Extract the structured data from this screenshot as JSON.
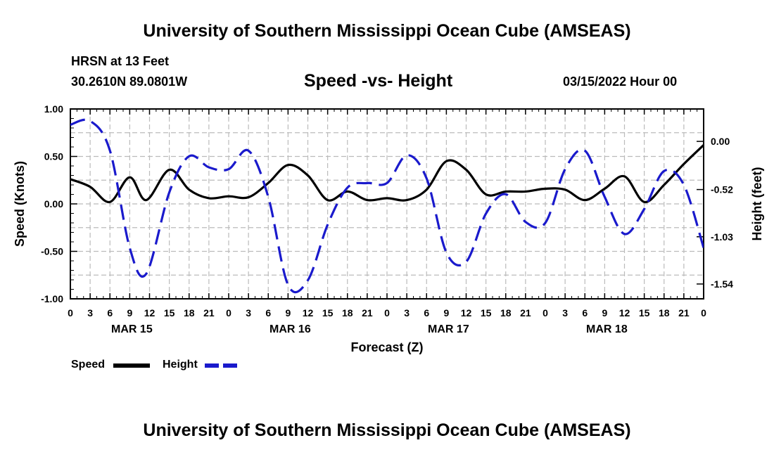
{
  "page": {
    "title_top": "University of Southern Mississippi Ocean Cube (AMSEAS)",
    "title_bottom": "University of Southern Mississippi Ocean Cube (AMSEAS)",
    "station": "HRSN at 13 Feet",
    "coords": "30.2610N  89.0801W",
    "subtitle": "Speed -vs- Height",
    "datetime": "03/15/2022 Hour 00"
  },
  "legend": {
    "speed": "Speed",
    "height": "Height"
  },
  "colors": {
    "speed": "#000000",
    "height": "#1a1acc",
    "grid": "#bbbbbb"
  },
  "chart_data": {
    "type": "line",
    "xlabel": "Forecast (Z)",
    "ylabel_left": "Speed (Knots)",
    "ylabel_right": "Height (feet)",
    "x_range_hours": [
      0,
      96
    ],
    "x_tick_labels": [
      "0",
      "3",
      "6",
      "9",
      "12",
      "15",
      "18",
      "21",
      "0",
      "3",
      "6",
      "9",
      "12",
      "15",
      "18",
      "21",
      "0",
      "3",
      "6",
      "9",
      "12",
      "15",
      "18",
      "21",
      "0",
      "3",
      "6",
      "9",
      "12",
      "15",
      "18",
      "21",
      "0"
    ],
    "day_labels": [
      {
        "text": "MAR 15",
        "hour": 9
      },
      {
        "text": "MAR 16",
        "hour": 33
      },
      {
        "text": "MAR 17",
        "hour": 57
      },
      {
        "text": "MAR 18",
        "hour": 81
      }
    ],
    "ylim_left": [
      -1.0,
      1.0
    ],
    "yticks_left": [
      "1.00",
      "0.50",
      "0.00",
      "-0.50",
      "-1.00"
    ],
    "yticks_left_values": [
      1.0,
      0.5,
      0.0,
      -0.5,
      -1.0
    ],
    "ylim_right": [
      -1.7,
      0.35
    ],
    "yticks_right": [
      "0.00",
      "-0.52",
      "-1.03",
      "-1.54"
    ],
    "yticks_right_values": [
      0.0,
      -0.52,
      -1.03,
      -1.54
    ],
    "grid": true,
    "series": [
      {
        "name": "Speed",
        "axis": "left",
        "style": "solid",
        "x": [
          0,
          3,
          6,
          9,
          11.5,
          15,
          18,
          21,
          24,
          27,
          30,
          33,
          36,
          39,
          42,
          45,
          48,
          51,
          54,
          57,
          60,
          63,
          66,
          69,
          72,
          75,
          78,
          81,
          84,
          87,
          90,
          93,
          96
        ],
        "y": [
          0.26,
          0.18,
          0.02,
          0.28,
          0.04,
          0.36,
          0.15,
          0.06,
          0.08,
          0.07,
          0.22,
          0.41,
          0.3,
          0.04,
          0.13,
          0.04,
          0.06,
          0.04,
          0.15,
          0.45,
          0.36,
          0.1,
          0.13,
          0.13,
          0.16,
          0.15,
          0.04,
          0.16,
          0.29,
          0.02,
          0.2,
          0.42,
          0.62
        ]
      },
      {
        "name": "Height",
        "axis": "right",
        "style": "dashed",
        "x": [
          0,
          3,
          6,
          9,
          11.5,
          15,
          18,
          21,
          24,
          27,
          30,
          33,
          36,
          39,
          42,
          45,
          48,
          51,
          54,
          57,
          60,
          63,
          66,
          69,
          72,
          75,
          78,
          81,
          84,
          87,
          90,
          93,
          96
        ],
        "y": [
          0.18,
          0.22,
          -0.1,
          -1.15,
          -1.43,
          -0.55,
          -0.16,
          -0.28,
          -0.3,
          -0.1,
          -0.6,
          -1.55,
          -1.5,
          -0.9,
          -0.5,
          -0.45,
          -0.45,
          -0.15,
          -0.4,
          -1.2,
          -1.3,
          -0.78,
          -0.57,
          -0.87,
          -0.88,
          -0.3,
          -0.1,
          -0.6,
          -1.0,
          -0.73,
          -0.32,
          -0.47,
          -1.15
        ]
      }
    ]
  }
}
